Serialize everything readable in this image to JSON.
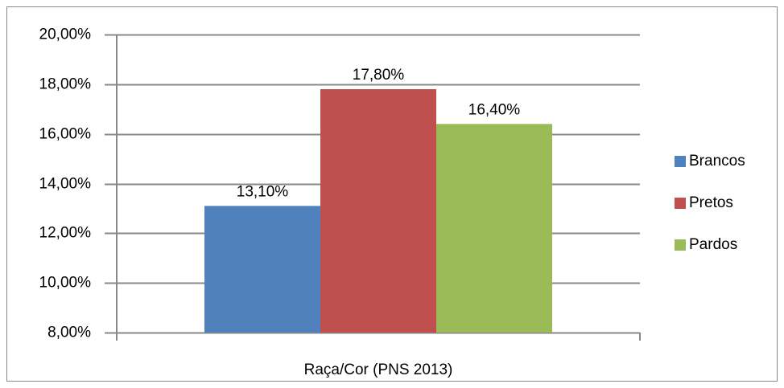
{
  "chart_data": {
    "type": "bar",
    "categories": [
      "Raça/Cor (PNS 2013)"
    ],
    "series": [
      {
        "name": "Brancos",
        "color": "#4f81bd",
        "values": [
          13.1
        ],
        "value_labels": [
          "13,10%"
        ]
      },
      {
        "name": "Pretos",
        "color": "#c0504d",
        "values": [
          17.8
        ],
        "value_labels": [
          "17,80%"
        ]
      },
      {
        "name": "Pardos",
        "color": "#9bbb59",
        "values": [
          16.4
        ],
        "value_labels": [
          "16,40%"
        ]
      }
    ],
    "ylim": [
      8,
      20
    ],
    "yticks": [
      {
        "value": 8,
        "label": "8,00%"
      },
      {
        "value": 10,
        "label": "10,00%"
      },
      {
        "value": 12,
        "label": "12,00%"
      },
      {
        "value": 14,
        "label": "14,00%"
      },
      {
        "value": 16,
        "label": "16,00%"
      },
      {
        "value": 18,
        "label": "18,00%"
      },
      {
        "value": 20,
        "label": "20,00%"
      }
    ],
    "grid": true,
    "legend": "right"
  }
}
